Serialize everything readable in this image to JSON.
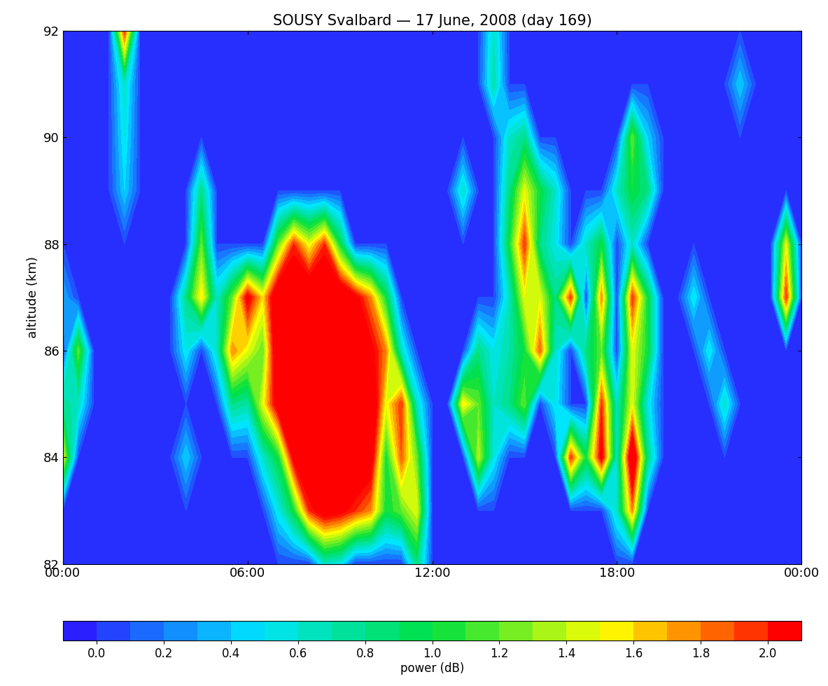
{
  "chart_data": {
    "type": "heatmap",
    "title": "SOUSY Svalbard — 17 June, 2008 (day 169)",
    "y_label": "altitude (km)",
    "x": [
      0,
      0.5,
      1,
      1.5,
      2,
      2.5,
      3,
      3.5,
      4,
      4.5,
      5,
      5.5,
      6,
      6.5,
      7,
      7.5,
      8,
      8.5,
      9,
      9.5,
      10,
      10.5,
      11,
      11.5,
      12,
      12.5,
      13,
      13.5,
      14,
      14.5,
      15,
      15.5,
      16,
      16.5,
      17,
      17.5,
      18,
      18.5,
      19,
      19.5,
      20,
      20.5,
      21,
      21.5,
      22,
      22.5,
      23,
      23.5,
      24
    ],
    "y": [
      82,
      83,
      84,
      85,
      86,
      87,
      88,
      89,
      90,
      91,
      92
    ],
    "values": [
      [
        0,
        0,
        0,
        0,
        0,
        0,
        0,
        0,
        0,
        0,
        0,
        0,
        0,
        0,
        0,
        0,
        0,
        0.6,
        0.5,
        0,
        0,
        0,
        0,
        0.8,
        0,
        0,
        0,
        0,
        0,
        0,
        0,
        0,
        0,
        0,
        0,
        0,
        0,
        0,
        0,
        0,
        0,
        0,
        0,
        0,
        0,
        0,
        0,
        0,
        0
      ],
      [
        0,
        0,
        0,
        0,
        0,
        0,
        0,
        0,
        0,
        0,
        0,
        0,
        0,
        0,
        0.5,
        1.0,
        2.0,
        2.3,
        2.2,
        2.0,
        1.8,
        1.0,
        1.2,
        1.5,
        0,
        0,
        0,
        0,
        0,
        0,
        0,
        0,
        0,
        0,
        0,
        0,
        0.6,
        1.8,
        0,
        0,
        0,
        0,
        0,
        0,
        0,
        0,
        0,
        0,
        0
      ],
      [
        1.5,
        0,
        0,
        0,
        0,
        0,
        0,
        0,
        0.4,
        0,
        0,
        0,
        0,
        0.6,
        1.0,
        2.2,
        2.5,
        2.5,
        2.5,
        2.5,
        2.3,
        1.0,
        1.9,
        1.2,
        0,
        0,
        0,
        1.4,
        0.5,
        0,
        0,
        0,
        0,
        2.0,
        1.0,
        2.2,
        0.6,
        2.5,
        0.8,
        0,
        0,
        0,
        0,
        0,
        0,
        0,
        0,
        0,
        0
      ],
      [
        0.8,
        0.6,
        0,
        0,
        0,
        0,
        0,
        0,
        0,
        0,
        0,
        0.8,
        0.7,
        1.5,
        2.3,
        2.5,
        2.5,
        2.5,
        2.5,
        2.5,
        2.5,
        1.5,
        2.0,
        0.6,
        0,
        0,
        1.6,
        1.2,
        0.6,
        0.8,
        1.2,
        0,
        0.5,
        0,
        0,
        2.0,
        0.6,
        1.5,
        0.5,
        0,
        0,
        0,
        0,
        0.6,
        0,
        0,
        0,
        0,
        0
      ],
      [
        0,
        1.2,
        0,
        0,
        0,
        0,
        0,
        0,
        0.5,
        0,
        0.6,
        1.8,
        1.5,
        1.2,
        2.5,
        2.5,
        2.5,
        2.5,
        2.5,
        2.5,
        2.2,
        1.8,
        0.6,
        0,
        0,
        0,
        0,
        0.8,
        0.5,
        0.7,
        1.0,
        1.9,
        0.6,
        0,
        0.8,
        1.2,
        0,
        1.5,
        1.0,
        0,
        0,
        0,
        0.5,
        0,
        0,
        0,
        0,
        0,
        0
      ],
      [
        0.3,
        0,
        0,
        0,
        0,
        0,
        0,
        0,
        0.8,
        1.6,
        0.6,
        1.2,
        2.2,
        1.6,
        2.5,
        2.5,
        2.5,
        2.5,
        2.5,
        2.2,
        1.8,
        1.0,
        0,
        0,
        0,
        0,
        0,
        0,
        0,
        0.6,
        1.5,
        1.5,
        0.8,
        2.0,
        0,
        1.8,
        0,
        2.0,
        1.0,
        0,
        0,
        0.5,
        0,
        0,
        0,
        0,
        0,
        2.0,
        0
      ],
      [
        0,
        0,
        0,
        0,
        0,
        0,
        0,
        0,
        0,
        1.2,
        0,
        0,
        0,
        0,
        1.2,
        2.0,
        1.5,
        2.0,
        1.0,
        0,
        0,
        0,
        0,
        0,
        0,
        0,
        0,
        0,
        0,
        1.0,
        2.0,
        0.8,
        0.5,
        0,
        0.6,
        1.0,
        0,
        0.6,
        0,
        0,
        0,
        0,
        0,
        0,
        0,
        0,
        0,
        1.5,
        0
      ],
      [
        0,
        0,
        0,
        0,
        0.4,
        0,
        0,
        0,
        0,
        0.8,
        0,
        0,
        0,
        0,
        0,
        0,
        0,
        0,
        0,
        0,
        0,
        0,
        0,
        0,
        0,
        0,
        0.6,
        0,
        0,
        0.8,
        1.5,
        1.0,
        0.6,
        0,
        0,
        0,
        0.6,
        1.0,
        0.8,
        0,
        0,
        0,
        0,
        0,
        0,
        0,
        0,
        0,
        0
      ],
      [
        0,
        0,
        0,
        0,
        0.5,
        0,
        0,
        0,
        0,
        0,
        0,
        0,
        0,
        0,
        0,
        0,
        0,
        0,
        0,
        0,
        0,
        0,
        0,
        0,
        0,
        0,
        0,
        0,
        0,
        0.6,
        0.8,
        0,
        0,
        0,
        0,
        0,
        0,
        1.2,
        0.4,
        0,
        0,
        0,
        0,
        0,
        0,
        0,
        0,
        0,
        0
      ],
      [
        0,
        0,
        0,
        0,
        0.6,
        0,
        0,
        0,
        0,
        0,
        0,
        0,
        0,
        0,
        0,
        0,
        0,
        0,
        0,
        0,
        0,
        0,
        0,
        0,
        0,
        0,
        0,
        0,
        0.7,
        0,
        0,
        0,
        0,
        0,
        0,
        0,
        0,
        0,
        0,
        0,
        0,
        0,
        0,
        0,
        0.4,
        0,
        0,
        0,
        0
      ],
      [
        0,
        0,
        0,
        0,
        2.0,
        0,
        0,
        0,
        0,
        0,
        0,
        0,
        0,
        0,
        0,
        0,
        0,
        0,
        0,
        0,
        0,
        0,
        0,
        0,
        0,
        0,
        0,
        0,
        0.6,
        0,
        0,
        0,
        0,
        0,
        0,
        0,
        0,
        0,
        0,
        0,
        0,
        0,
        0,
        0,
        0,
        0,
        0,
        0,
        0
      ]
    ],
    "xlim": [
      0,
      24
    ],
    "xticks": [
      {
        "value": 0,
        "label": "00:00"
      },
      {
        "value": 6,
        "label": "06:00"
      },
      {
        "value": 12,
        "label": "12:00"
      },
      {
        "value": 18,
        "label": "18:00"
      },
      {
        "value": 24,
        "label": "00:00"
      }
    ],
    "ylim": [
      82,
      92
    ],
    "yticks": [
      82,
      84,
      86,
      88,
      90,
      92
    ],
    "colorbar": {
      "label": "power (dB)",
      "range": [
        -0.1,
        2.1
      ],
      "levels": [
        -0.1,
        0.0,
        0.1,
        0.2,
        0.3,
        0.4,
        0.5,
        0.6,
        0.7,
        0.8,
        0.9,
        1.0,
        1.1,
        1.2,
        1.3,
        1.4,
        1.5,
        1.6,
        1.7,
        1.8,
        1.9,
        2.0,
        2.1
      ],
      "ticks": [
        {
          "value": 0.0,
          "label": "0.0"
        },
        {
          "value": 0.2,
          "label": "0.2"
        },
        {
          "value": 0.4,
          "label": "0.4"
        },
        {
          "value": 0.6,
          "label": "0.6"
        },
        {
          "value": 0.8,
          "label": "0.8"
        },
        {
          "value": 1.0,
          "label": "1.0"
        },
        {
          "value": 1.2,
          "label": "1.2"
        },
        {
          "value": 1.4,
          "label": "1.4"
        },
        {
          "value": 1.6,
          "label": "1.6"
        },
        {
          "value": 1.8,
          "label": "1.8"
        },
        {
          "value": 2.0,
          "label": "2.0"
        }
      ]
    }
  }
}
